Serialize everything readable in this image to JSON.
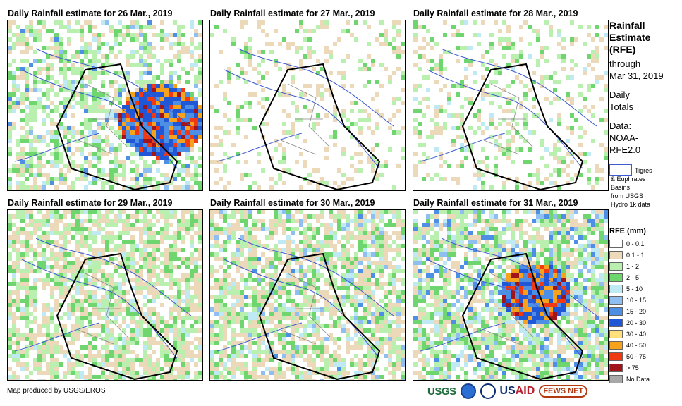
{
  "panels": [
    {
      "title": "Daily Rainfall estimate for 26 Mar., 2019",
      "intensity": "heavy-east"
    },
    {
      "title": "Daily Rainfall estimate for 27 Mar., 2019",
      "intensity": "light"
    },
    {
      "title": "Daily Rainfall estimate for 28 Mar., 2019",
      "intensity": "light-north"
    },
    {
      "title": "Daily Rainfall estimate for 29 Mar., 2019",
      "intensity": "moderate"
    },
    {
      "title": "Daily Rainfall estimate for 30 Mar., 2019",
      "intensity": "moderate-north"
    },
    {
      "title": "Daily Rainfall estimate for 31 Mar., 2019",
      "intensity": "heavy-center"
    }
  ],
  "sidebar": {
    "title_line1": "Rainfall",
    "title_line2": "Estimate",
    "title_line3": "(RFE)",
    "through": "through",
    "date": "Mar 31, 2019",
    "daily": "Daily",
    "totals": "Totals",
    "data_label": "Data:",
    "data_source1": "NOAA-",
    "data_source2": "RFE2.0"
  },
  "basin_note": {
    "line1": "Tigres",
    "line2": "& Euphrates",
    "line3": "Basins",
    "line4": "from USGS",
    "line5": "Hydro 1k data"
  },
  "legend": {
    "title": "RFE (mm)",
    "items": [
      {
        "label": "0 - 0.1",
        "color": "#ffffff"
      },
      {
        "label": "0.1 - 1",
        "color": "#ecd9b9"
      },
      {
        "label": "1 - 2",
        "color": "#b9f0b0"
      },
      {
        "label": "2 - 5",
        "color": "#6fd66f"
      },
      {
        "label": "5 - 10",
        "color": "#bfeaf3"
      },
      {
        "label": "10 - 15",
        "color": "#8fbff0"
      },
      {
        "label": "15 - 20",
        "color": "#4e8fe6"
      },
      {
        "label": "20 - 30",
        "color": "#1f57d6"
      },
      {
        "label": "30 - 40",
        "color": "#ffe07a"
      },
      {
        "label": "40 - 50",
        "color": "#f7a21c"
      },
      {
        "label": "50 - 75",
        "color": "#f03a14"
      },
      {
        "label": "> 75",
        "color": "#a0141b"
      },
      {
        "label": "No Data",
        "color": "#a8a8a8"
      }
    ]
  },
  "footer": {
    "credit": "Map produced by USGS/EROS"
  },
  "logos": {
    "usgs": "USGS",
    "usaid_a": "US",
    "usaid_b": "AID",
    "fews": "FEWS NET"
  }
}
